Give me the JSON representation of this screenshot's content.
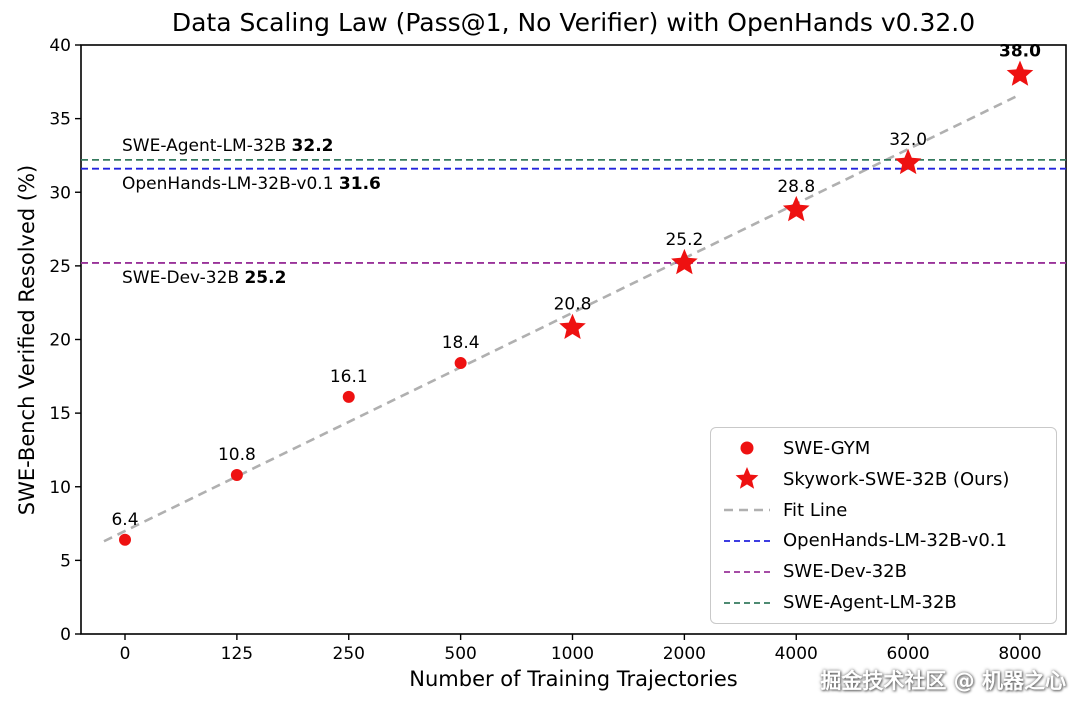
{
  "watermark": "掘金技术社区 @ 机器之心",
  "chart_data": {
    "type": "scatter",
    "title": "Data Scaling Law (Pass@1, No Verifier) with OpenHands v0.32.0",
    "xlabel": "Number of Training Trajectories",
    "ylabel": "SWE-Bench Verified Resolved (%)",
    "x_categories": [
      "0",
      "125",
      "250",
      "500",
      "1000",
      "2000",
      "4000",
      "6000",
      "8000"
    ],
    "ylim": [
      0,
      40
    ],
    "yticks": [
      0,
      5,
      10,
      15,
      20,
      25,
      30,
      35,
      40
    ],
    "grid": false,
    "series": [
      {
        "name": "SWE-GYM",
        "marker": "circle",
        "color": "#ee1111",
        "points": [
          {
            "x": "0",
            "y": 6.4,
            "label": "6.4"
          },
          {
            "x": "125",
            "y": 10.8,
            "label": "10.8"
          },
          {
            "x": "250",
            "y": 16.1,
            "label": "16.1"
          },
          {
            "x": "500",
            "y": 18.4,
            "label": "18.4"
          }
        ]
      },
      {
        "name": "Skywork-SWE-32B (Ours)",
        "marker": "star",
        "color": "#ee1111",
        "points": [
          {
            "x": "1000",
            "y": 20.8,
            "label": "20.8"
          },
          {
            "x": "2000",
            "y": 25.2,
            "label": "25.2"
          },
          {
            "x": "4000",
            "y": 28.8,
            "label": "28.8"
          },
          {
            "x": "6000",
            "y": 32.0,
            "label": "32.0"
          },
          {
            "x": "8000",
            "y": 38.0,
            "label": "38.0",
            "bold": true
          }
        ]
      }
    ],
    "fit_line": {
      "label": "Fit Line",
      "color": "#b0b0b0",
      "y_start": 6.3,
      "y_end": 36.5
    },
    "reference_lines": [
      {
        "name": "SWE-Agent-LM-32B",
        "value": 32.2,
        "color": "#357a5e",
        "label": "SWE-Agent-LM-32B",
        "value_label": "32.2",
        "label_side": "above"
      },
      {
        "name": "OpenHands-LM-32B-v0.1",
        "value": 31.6,
        "color": "#2222dd",
        "label": "OpenHands-LM-32B-v0.1",
        "value_label": "31.6",
        "label_side": "below"
      },
      {
        "name": "SWE-Dev-32B",
        "value": 25.2,
        "color": "#993399",
        "label": "SWE-Dev-32B",
        "value_label": "25.2",
        "label_side": "below"
      }
    ],
    "legend": {
      "position": "lower right",
      "entries": [
        {
          "label": "SWE-GYM",
          "marker": "circle",
          "color": "#ee1111",
          "line_width": 0
        },
        {
          "label": "Skywork-SWE-32B (Ours)",
          "marker": "star",
          "color": "#ee1111",
          "line_width": 0
        },
        {
          "label": "Fit Line",
          "marker": "dash",
          "color": "#b0b0b0",
          "line_width": 2.6
        },
        {
          "label": "OpenHands-LM-32B-v0.1",
          "marker": "dash",
          "color": "#2222dd",
          "line_width": 1.8
        },
        {
          "label": "SWE-Dev-32B",
          "marker": "dash",
          "color": "#993399",
          "line_width": 1.8
        },
        {
          "label": "SWE-Agent-LM-32B",
          "marker": "dash",
          "color": "#357a5e",
          "line_width": 1.8
        }
      ]
    }
  }
}
